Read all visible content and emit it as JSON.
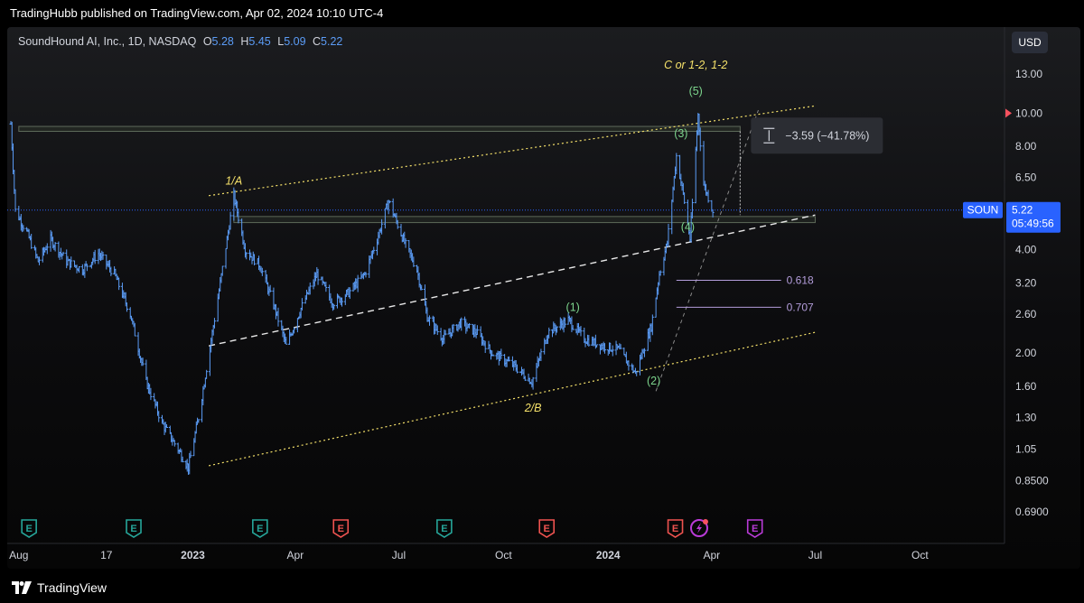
{
  "header": {
    "published": "TradingHubb published on TradingView.com, Apr 02, 2024 10:10 UTC-4"
  },
  "legend": {
    "symbol": "SoundHound AI, Inc., 1D, NASDAQ",
    "open_key": "O",
    "open": "5.28",
    "high_key": "H",
    "high": "5.45",
    "low_key": "L",
    "low": "5.09",
    "close_key": "C",
    "close": "5.22"
  },
  "currency": "USD",
  "brand": "TradingView",
  "colors": {
    "bar": "#5b9cf6",
    "wave": "#f5e16a",
    "impulse": "#7cd48c",
    "fib": "#b39ddb",
    "symbol": "#2962ff",
    "earnings_green": "#26a69a",
    "earnings_red": "#ef5350",
    "earnings_purple": "#ba3bd8"
  },
  "chart_data": {
    "type": "bar",
    "scale": "log",
    "symbol_tag": "SOUN",
    "last_price": "5.22",
    "countdown": "05:49:56",
    "y_ticks": [
      "13.00",
      "10.00",
      "8.00",
      "6.50",
      "5.22",
      "4.00",
      "3.20",
      "2.60",
      "2.00",
      "1.60",
      "1.30",
      "1.05",
      "0.8500",
      "0.6900"
    ],
    "x_ticks": [
      "Aug",
      "17",
      "2023",
      "Apr",
      "Jul",
      "Oct",
      "2024",
      "Apr",
      "Jul",
      "Oct"
    ],
    "x_ticks_bold": [
      "2023",
      "2024"
    ],
    "wave_labels": [
      {
        "text": "1/A",
        "date": "2023-02-06",
        "price": 6.2,
        "color": "wave"
      },
      {
        "text": "2/B",
        "date": "2023-10-27",
        "price": 1.35,
        "color": "wave"
      },
      {
        "text": "C or 1-2, 1-2",
        "date": "2024-03-18",
        "price": 13.5,
        "color": "wave"
      },
      {
        "text": "(1)",
        "date": "2023-12-01",
        "price": 2.65,
        "color": "impulse"
      },
      {
        "text": "(2)",
        "date": "2024-02-10",
        "price": 1.62,
        "color": "impulse"
      },
      {
        "text": "(3)",
        "date": "2024-03-05",
        "price": 8.5,
        "color": "impulse"
      },
      {
        "text": "(4)",
        "date": "2024-03-11",
        "price": 4.55,
        "color": "impulse"
      },
      {
        "text": "(5)",
        "date": "2024-03-18",
        "price": 11.3,
        "color": "impulse"
      }
    ],
    "fib_levels": [
      {
        "label": "0.618",
        "price": 3.26
      },
      {
        "label": "0.707",
        "price": 2.72
      }
    ],
    "measure_label": "−3.59 (−41.78%)",
    "channel_upper": [
      [
        "2023-01-15",
        5.75
      ],
      [
        "2024-07-01",
        10.5
      ]
    ],
    "channel_mid": [
      [
        "2023-01-15",
        2.1
      ],
      [
        "2024-07-01",
        5.05
      ]
    ],
    "channel_lower": [
      [
        "2023-01-15",
        0.94
      ],
      [
        "2024-07-01",
        2.3
      ]
    ],
    "resistance_zones": [
      {
        "from": "2022-08-01",
        "to": "2024-04-26",
        "top": 9.15,
        "bottom": 8.85
      },
      {
        "from": "2023-02-06",
        "to": "2024-07-01",
        "top": 5.0,
        "bottom": 4.8
      }
    ],
    "earnings": [
      {
        "date": "2022-08-10",
        "kind": "E",
        "color": "earnings_green"
      },
      {
        "date": "2022-11-10",
        "kind": "E",
        "color": "earnings_green"
      },
      {
        "date": "2023-03-01",
        "kind": "E",
        "color": "earnings_green"
      },
      {
        "date": "2023-05-11",
        "kind": "E",
        "color": "earnings_red"
      },
      {
        "date": "2023-08-10",
        "kind": "E",
        "color": "earnings_green"
      },
      {
        "date": "2023-11-08",
        "kind": "E",
        "color": "earnings_red"
      },
      {
        "date": "2024-02-29",
        "kind": "E",
        "color": "earnings_red"
      },
      {
        "date": "2024-03-21",
        "kind": "bolt",
        "color": "earnings_purple"
      },
      {
        "date": "2024-05-09",
        "kind": "E",
        "color": "earnings_purple"
      }
    ],
    "series": [
      {
        "name": "SOUN",
        "ohlc_anchors": [
          [
            "2022-07-25",
            9.3
          ],
          [
            "2022-07-29",
            5.2
          ],
          [
            "2022-08-08",
            4.5
          ],
          [
            "2022-08-18",
            3.7
          ],
          [
            "2022-08-29",
            4.3
          ],
          [
            "2022-09-12",
            3.7
          ],
          [
            "2022-09-26",
            3.5
          ],
          [
            "2022-10-10",
            3.9
          ],
          [
            "2022-10-24",
            3.4
          ],
          [
            "2022-11-07",
            2.6
          ],
          [
            "2022-11-21",
            1.65
          ],
          [
            "2022-12-05",
            1.25
          ],
          [
            "2022-12-19",
            1.05
          ],
          [
            "2022-12-28",
            0.93
          ],
          [
            "2023-01-06",
            1.3
          ],
          [
            "2023-01-23",
            2.9
          ],
          [
            "2023-02-06",
            5.75
          ],
          [
            "2023-02-16",
            4.0
          ],
          [
            "2023-03-01",
            3.6
          ],
          [
            "2023-03-14",
            2.7
          ],
          [
            "2023-03-24",
            2.1
          ],
          [
            "2023-04-06",
            2.7
          ],
          [
            "2023-04-20",
            3.4
          ],
          [
            "2023-05-04",
            2.8
          ],
          [
            "2023-05-18",
            3.0
          ],
          [
            "2023-06-01",
            3.4
          ],
          [
            "2023-06-12",
            4.3
          ],
          [
            "2023-06-22",
            5.55
          ],
          [
            "2023-07-06",
            4.2
          ],
          [
            "2023-07-17",
            3.5
          ],
          [
            "2023-07-26",
            2.55
          ],
          [
            "2023-08-09",
            2.2
          ],
          [
            "2023-08-24",
            2.45
          ],
          [
            "2023-09-07",
            2.3
          ],
          [
            "2023-09-21",
            2.0
          ],
          [
            "2023-10-09",
            1.85
          ],
          [
            "2023-10-26",
            1.65
          ],
          [
            "2023-11-09",
            2.3
          ],
          [
            "2023-11-27",
            2.5
          ],
          [
            "2023-12-11",
            2.2
          ],
          [
            "2023-12-27",
            2.1
          ],
          [
            "2024-01-10",
            2.05
          ],
          [
            "2024-01-25",
            1.75
          ],
          [
            "2024-02-08",
            2.4
          ],
          [
            "2024-02-15",
            3.4
          ],
          [
            "2024-02-22",
            4.2
          ],
          [
            "2024-03-01",
            7.5
          ],
          [
            "2024-03-07",
            5.8
          ],
          [
            "2024-03-13",
            4.3
          ],
          [
            "2024-03-20",
            9.9
          ],
          [
            "2024-03-25",
            6.2
          ],
          [
            "2024-04-02",
            5.22
          ]
        ]
      }
    ]
  }
}
